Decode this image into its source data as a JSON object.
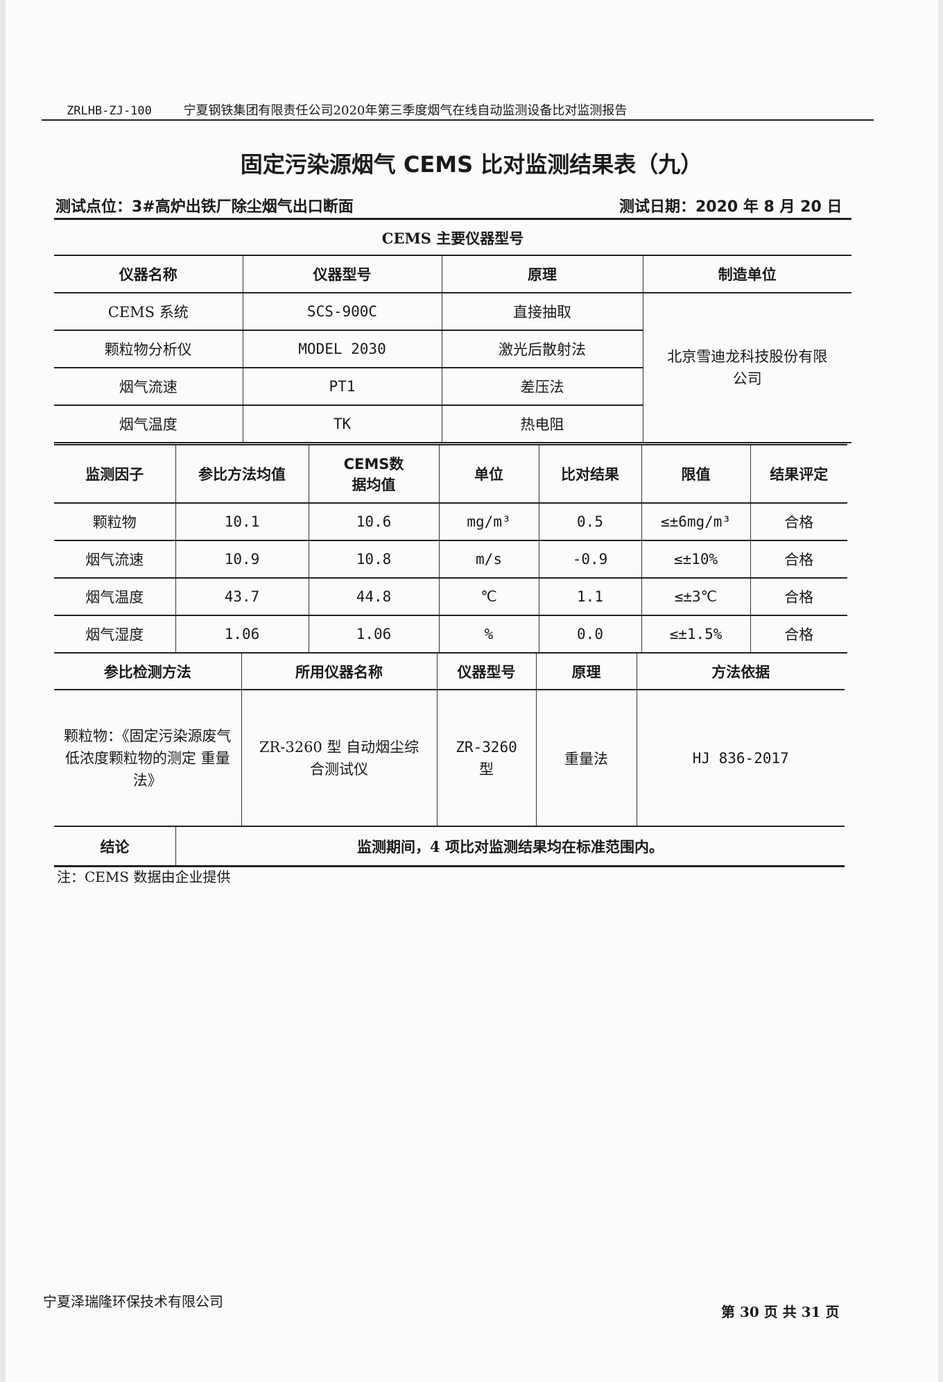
{
  "header": {
    "code": "ZRLHB-ZJ-100",
    "report_title": "宁夏钢铁集团有限责任公司2020年第三季度烟气在线自动监测设备比对监测报告"
  },
  "title": "固定污染源烟气 CEMS 比对监测结果表（九）",
  "test_point": "测试点位：3#高炉出铁厂除尘烟气出口断面",
  "test_date": "测试日期：2020 年 8 月 20 日",
  "instruments": {
    "caption": "CEMS 主要仪器型号",
    "headers": [
      "仪器名称",
      "仪器型号",
      "原理",
      "制造单位"
    ],
    "rows": [
      [
        "CEMS 系统",
        "SCS-900C",
        "直接抽取"
      ],
      [
        "颗粒物分析仪",
        "MODEL 2030",
        "激光后散射法"
      ],
      [
        "烟气流速",
        "PT1",
        "差压法"
      ],
      [
        "烟气温度",
        "TK",
        "热电阻"
      ]
    ],
    "manufacturer": "北京雪迪龙科技股份有限公司"
  },
  "results": {
    "headers": [
      "监测因子",
      "参比方法均值",
      "CEMS数据均值",
      "单位",
      "比对结果",
      "限值",
      "结果评定"
    ],
    "rows": [
      [
        "颗粒物",
        "10.1",
        "10.6",
        "mg/m³",
        "0.5",
        "≤±6mg/m³",
        "合格"
      ],
      [
        "烟气流速",
        "10.9",
        "10.8",
        "m/s",
        "-0.9",
        "≤±10%",
        "合格"
      ],
      [
        "烟气温度",
        "43.7",
        "44.8",
        "℃",
        "1.1",
        "≤±3℃",
        "合格"
      ],
      [
        "烟气湿度",
        "1.06",
        "1.06",
        "%",
        "0.0",
        "≤±1.5%",
        "合格"
      ]
    ]
  },
  "methods": {
    "headers": [
      "参比检测方法",
      "所用仪器名称",
      "仪器型号",
      "原理",
      "方法依据"
    ],
    "row": [
      "颗粒物：《固定污染源废气 低浓度颗粒物的测定 重量法》",
      "ZR-3260 型 自动烟尘综合测试仪",
      "ZR-3260 型",
      "重量法",
      "HJ 836-2017"
    ]
  },
  "conclusion": {
    "label": "结论",
    "text": "监测期间，4 项比对监测结果均在标准范围内。"
  },
  "note": "注：CEMS 数据由企业提供",
  "footer": {
    "company": "宁夏泽瑞隆环保技术有限公司",
    "page": "第 30 页 共 31 页"
  }
}
